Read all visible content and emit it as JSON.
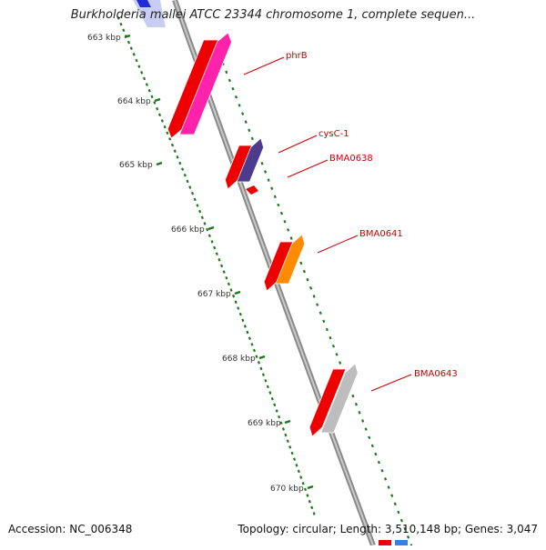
{
  "title": "Burkholderia mallei ATCC 23344 chromosome 1, complete sequen...",
  "footer": {
    "accession": "Accession: NC_006348",
    "topology": "Topology: circular; Length: 3,510,148 bp; Genes: 3,047"
  },
  "ruler": {
    "labels": [
      "663 kbp",
      "664 kbp",
      "665 kbp",
      "666 kbp",
      "667 kbp",
      "668 kbp",
      "669 kbp",
      "670 kbp"
    ]
  },
  "genes": [
    {
      "name": "phrB",
      "color": "#ff22aa"
    },
    {
      "name": "cysC-1",
      "color": "#4b3c8e"
    },
    {
      "name": "BMA0638",
      "color": "#ee0000"
    },
    {
      "name": "BMA0641",
      "color": "#ff8c00"
    },
    {
      "name": "BMA0643",
      "color": "#bdbdbd"
    }
  ],
  "colors": {
    "backbone": "#8a8a8a",
    "ruler_ticks": "#1a7a1a",
    "label": "#cc0000",
    "reverse_strand": "#ee0000"
  }
}
